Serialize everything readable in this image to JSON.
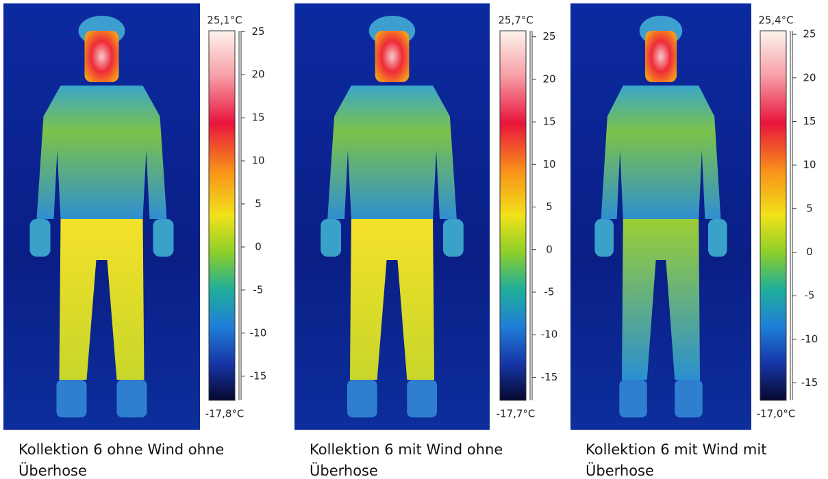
{
  "panels": [
    {
      "scale_max": {
        "value": 25.1,
        "label": "25,1°C"
      },
      "scale_min": {
        "value": -17.8,
        "label": "-17,8°C"
      },
      "ticks": [
        25,
        20,
        15,
        10,
        5,
        0,
        -5,
        -10,
        -15
      ],
      "caption": [
        "Kollektion 6 ohne Wind ohne",
        "Überhose"
      ]
    },
    {
      "scale_max": {
        "value": 25.7,
        "label": "25,7°C"
      },
      "scale_min": {
        "value": -17.7,
        "label": "-17,7°C"
      },
      "ticks": [
        25,
        20,
        15,
        10,
        5,
        0,
        -5,
        -10,
        -15
      ],
      "caption": [
        "Kollektion 6 mit Wind ohne",
        "Überhose"
      ]
    },
    {
      "scale_max": {
        "value": 25.4,
        "label": "25,4°C"
      },
      "scale_min": {
        "value": -17.0,
        "label": "-17,0°C"
      },
      "ticks": [
        25,
        20,
        15,
        10,
        5,
        0,
        -5,
        -10,
        -15
      ],
      "caption": [
        "Kollektion 6 mit Wind mit",
        "Überhose"
      ]
    }
  ]
}
